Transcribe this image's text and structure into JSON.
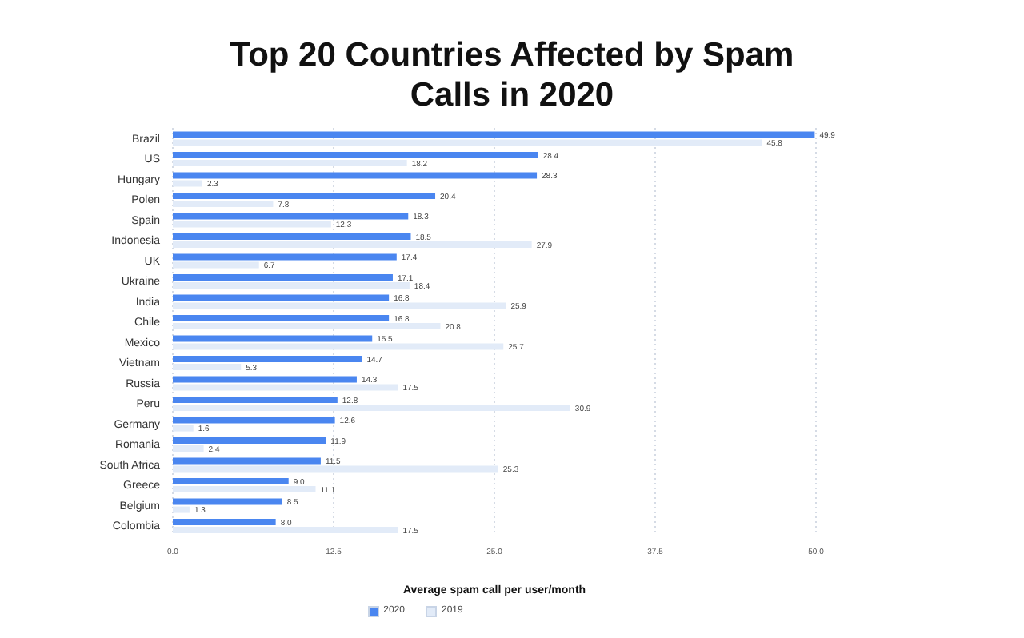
{
  "chart_data": {
    "type": "bar",
    "orientation": "horizontal",
    "title": "Top 20 Countries Affected by Spam Calls in 2020",
    "xlabel": "Average spam call per user/month",
    "categories": [
      "Brazil",
      "US",
      "Hungary",
      "Polen",
      "Spain",
      "Indonesia",
      "UK",
      "Ukraine",
      "India",
      "Chile",
      "Mexico",
      "Vietnam",
      "Russia",
      "Peru",
      "Germany",
      "Romania",
      "South Africa",
      "Greece",
      "Belgium",
      "Colombia"
    ],
    "series": [
      {
        "name": "2020",
        "color": "#4a86f0",
        "values": [
          49.9,
          28.4,
          28.3,
          20.4,
          18.3,
          18.5,
          17.4,
          17.1,
          16.8,
          16.8,
          15.5,
          14.7,
          14.3,
          12.8,
          12.6,
          11.9,
          11.5,
          9.0,
          8.5,
          8.0
        ],
        "value_labels": [
          "49.9",
          "28.4",
          "28.3",
          "20.4",
          "18.3",
          "18.5",
          "17.4",
          "17.1",
          "16.8",
          "16.8",
          "15.5",
          "14.7",
          "14.3",
          "12.8",
          "12.6",
          "11.9",
          "11.5",
          "9.0",
          "8.5",
          "8.0"
        ]
      },
      {
        "name": "2019",
        "color": "#e2ebf8",
        "values": [
          45.8,
          18.2,
          2.3,
          7.8,
          12.3,
          27.9,
          6.7,
          18.4,
          25.9,
          20.8,
          25.7,
          5.3,
          17.5,
          30.9,
          1.6,
          2.4,
          25.3,
          11.1,
          1.3,
          17.5
        ],
        "value_labels": [
          "45.8",
          "18.2",
          "2.3",
          "7.8",
          "12.3",
          "27.9",
          "6.7",
          "18.4",
          "25.9",
          "20.8",
          "25.7",
          "5.3",
          "17.5",
          "30.9",
          "1.6",
          "2.4",
          "25.3",
          "11.1",
          "1.3",
          "17.5"
        ]
      }
    ],
    "xlim": [
      0,
      50
    ],
    "xticks": [
      {
        "value": 0,
        "label": "0.0"
      },
      {
        "value": 12.5,
        "label": "12.5"
      },
      {
        "value": 25,
        "label": "25.0"
      },
      {
        "value": 37.5,
        "label": "37.5"
      },
      {
        "value": 50,
        "label": "50.0"
      }
    ],
    "grid": "x",
    "legend": "bottom"
  }
}
